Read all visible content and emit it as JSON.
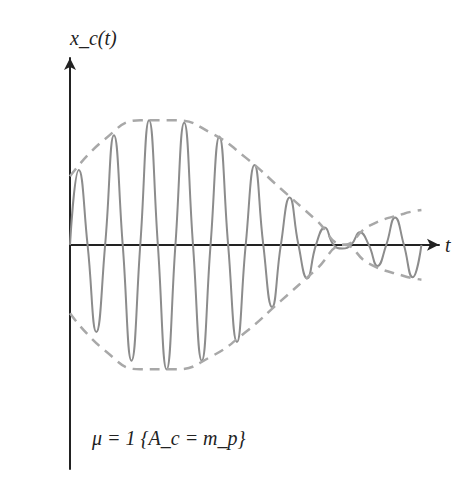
{
  "chart_data": {
    "type": "line",
    "x_label": "t",
    "y_label": "x_c(t)",
    "annotation": "μ = 1 {A_c = m_p}",
    "xlim": [
      0,
      10.5
    ],
    "ylim": [
      -1.8,
      1.5
    ],
    "tick_labels": false,
    "grid": false,
    "series": [
      {
        "color": "#8c8c8c",
        "line_style": "solid",
        "x": [
          0,
          0.25,
          0.5,
          0.75,
          1,
          1.25,
          1.5,
          1.75,
          2,
          2.25,
          2.5,
          2.75,
          3,
          3.25,
          3.5,
          3.75,
          4,
          4.25,
          4.5,
          4.75,
          5,
          5.25,
          5.5,
          5.75,
          6,
          6.25,
          6.5,
          6.75,
          7,
          7.25,
          7.5,
          7.75,
          8,
          8.25,
          8.5,
          8.75,
          9,
          9.25,
          9.5,
          9.75,
          10
        ],
        "values": [
          0,
          0.6,
          0,
          -0.7,
          0,
          0.88,
          0,
          -0.93,
          0,
          1.0,
          0,
          -1.0,
          0,
          0.98,
          0,
          -0.93,
          0,
          0.87,
          0,
          -0.78,
          0,
          0.64,
          0,
          -0.5,
          0,
          0.38,
          0,
          -0.27,
          0,
          0.14,
          0,
          -0.03,
          0,
          0.1,
          0,
          -0.17,
          0,
          0.22,
          0,
          -0.26,
          0
        ]
      },
      {
        "color": "#a8a8a8",
        "line_style": "dashed",
        "x": [
          0,
          1,
          2,
          3,
          4,
          5,
          6,
          7,
          7.8,
          8.5,
          9.5,
          10
        ],
        "values": [
          0.55,
          0.85,
          1.0,
          1.0,
          0.9,
          0.7,
          0.45,
          0.2,
          0,
          0.15,
          0.25,
          0.28
        ]
      },
      {
        "color": "#a8a8a8",
        "line_style": "dashed",
        "x": [
          0,
          1,
          2,
          3,
          4,
          5,
          6,
          7,
          7.8,
          8.5,
          9.5,
          10
        ],
        "values": [
          -0.55,
          -0.85,
          -1.0,
          -1.0,
          -0.9,
          -0.7,
          -0.45,
          -0.2,
          0,
          -0.15,
          -0.25,
          -0.28
        ]
      }
    ]
  }
}
